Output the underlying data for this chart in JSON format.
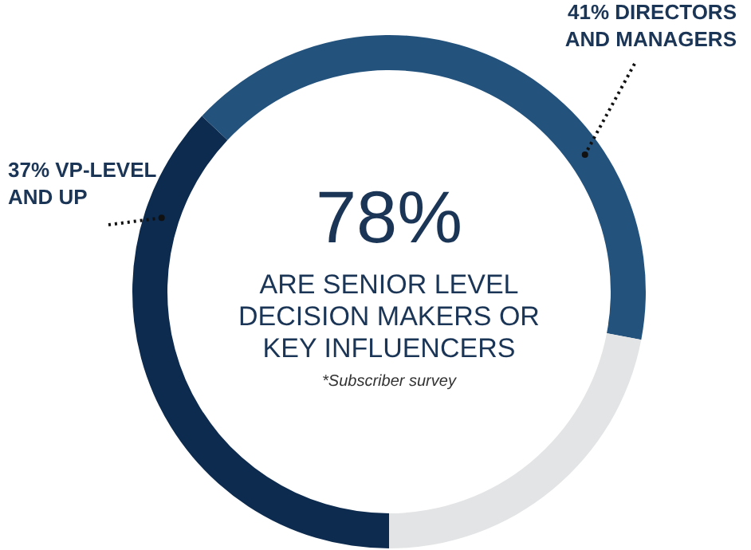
{
  "chart_data": {
    "type": "donut",
    "title": "78%",
    "subtitle": "ARE SENIOR LEVEL DECISION MAKERS OR KEY INFLUENCERS",
    "annotations": [
      "*Subscriber survey"
    ],
    "categories": [
      "VP-LEVEL AND UP",
      "DIRECTORS AND MANAGERS",
      null
    ],
    "values": [
      37,
      41,
      22
    ],
    "value_labels": [
      "37%",
      "41%",
      null
    ],
    "colors": [
      "#0c2b4e",
      "#23527d",
      "#e3e4e5"
    ]
  }
}
